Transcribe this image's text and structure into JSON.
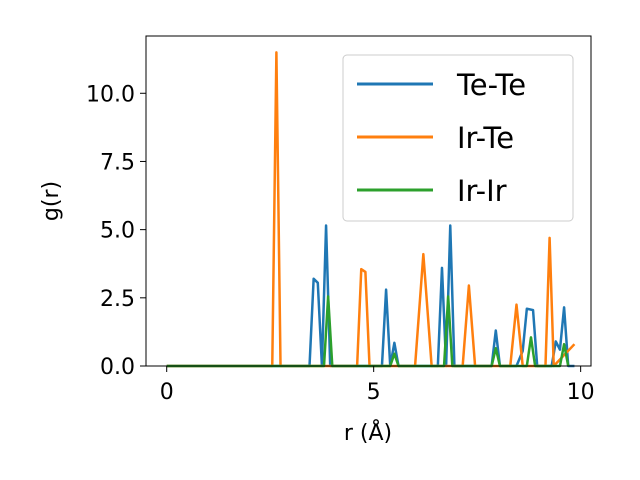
{
  "chart_data": {
    "type": "line",
    "xlabel": "r (Å)",
    "ylabel": "g(r)",
    "xlim": [
      -0.5,
      10.25
    ],
    "ylim": [
      0,
      12.1
    ],
    "xticks": [
      0,
      5,
      10
    ],
    "yticks": [
      0.0,
      2.5,
      5.0,
      7.5,
      10.0
    ],
    "xtick_labels": [
      "0",
      "5",
      "10"
    ],
    "ytick_labels": [
      "0.0",
      "2.5",
      "5.0",
      "7.5",
      "10.0"
    ],
    "grid": false,
    "legend_position": "top-right",
    "series": [
      {
        "name": "Te-Te",
        "color": "#1f77b4",
        "x": [
          0,
          3.45,
          3.55,
          3.65,
          3.75,
          3.85,
          3.95,
          5.2,
          5.3,
          5.4,
          5.5,
          5.6,
          6.55,
          6.65,
          6.75,
          6.85,
          6.95,
          7.85,
          7.95,
          8.05,
          8.45,
          8.6,
          8.7,
          8.85,
          8.95,
          9.3,
          9.4,
          9.5,
          9.6,
          9.7,
          9.85
        ],
        "y": [
          0,
          0,
          3.2,
          3.05,
          0,
          5.15,
          0,
          0,
          2.8,
          0,
          0.85,
          0,
          0,
          3.6,
          0,
          5.15,
          0,
          0,
          1.3,
          0,
          0,
          0.55,
          2.1,
          2.05,
          0,
          0,
          0.9,
          0.6,
          2.15,
          0,
          0
        ]
      },
      {
        "name": "Ir-Te",
        "color": "#ff7f0e",
        "x": [
          0,
          2.55,
          2.65,
          2.75,
          4.6,
          4.7,
          4.8,
          4.9,
          6.0,
          6.2,
          6.4,
          7.15,
          7.3,
          7.45,
          8.3,
          8.45,
          8.6,
          9.15,
          9.25,
          9.35,
          9.85
        ],
        "y": [
          0,
          0,
          11.5,
          0,
          0,
          3.55,
          3.45,
          0,
          0,
          4.1,
          0,
          0,
          2.95,
          0,
          0,
          2.25,
          0,
          0,
          4.7,
          0,
          0.8
        ]
      },
      {
        "name": "Ir-Ir",
        "color": "#2ca02c",
        "x": [
          0,
          3.8,
          3.9,
          4.0,
          5.4,
          5.5,
          5.6,
          6.7,
          6.8,
          6.9,
          7.85,
          7.95,
          8.05,
          8.7,
          8.8,
          8.9,
          9.5,
          9.6,
          9.7
        ],
        "y": [
          0,
          0,
          2.55,
          0,
          0,
          0.45,
          0,
          0,
          2.55,
          0,
          0,
          0.65,
          0,
          0,
          1.05,
          0,
          0,
          0.8,
          0
        ]
      }
    ]
  }
}
